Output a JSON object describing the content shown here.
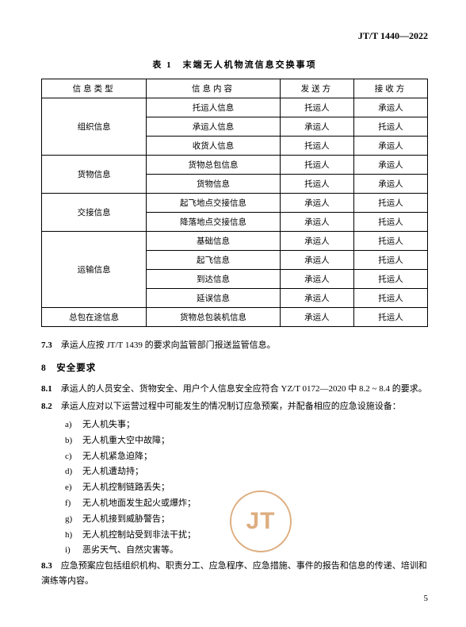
{
  "doc_code": "JT/T 1440—2022",
  "table_title": "表 1　末端无人机物流信息交换事项",
  "table_headers": [
    "信息类型",
    "信息内容",
    "发送方",
    "接收方"
  ],
  "table_groups": [
    {
      "type": "组织信息",
      "rows": [
        {
          "content": "托运人信息",
          "sender": "托运人",
          "receiver": "承运人"
        },
        {
          "content": "承运人信息",
          "sender": "承运人",
          "receiver": "托运人"
        },
        {
          "content": "收货人信息",
          "sender": "托运人",
          "receiver": "承运人"
        }
      ]
    },
    {
      "type": "货物信息",
      "rows": [
        {
          "content": "货物总包信息",
          "sender": "托运人",
          "receiver": "承运人"
        },
        {
          "content": "货物信息",
          "sender": "托运人",
          "receiver": "承运人"
        }
      ]
    },
    {
      "type": "交接信息",
      "rows": [
        {
          "content": "起飞地点交接信息",
          "sender": "承运人",
          "receiver": "托运人"
        },
        {
          "content": "降落地点交接信息",
          "sender": "承运人",
          "receiver": "托运人"
        }
      ]
    },
    {
      "type": "运输信息",
      "rows": [
        {
          "content": "基础信息",
          "sender": "承运人",
          "receiver": "托运人"
        },
        {
          "content": "起飞信息",
          "sender": "承运人",
          "receiver": "托运人"
        },
        {
          "content": "到达信息",
          "sender": "承运人",
          "receiver": "托运人"
        },
        {
          "content": "延误信息",
          "sender": "承运人",
          "receiver": "托运人"
        }
      ]
    },
    {
      "type": "总包在途信息",
      "rows": [
        {
          "content": "货物总包装机信息",
          "sender": "承运人",
          "receiver": "托运人"
        }
      ]
    }
  ],
  "clause_7_3": {
    "num": "7.3",
    "text": "承运人应按 JT/T 1439 的要求向监管部门报送监管信息。"
  },
  "heading_8": "8　安全要求",
  "clause_8_1": {
    "num": "8.1",
    "text": "承运人的人员安全、货物安全、用户个人信息安全应符合 YZ/T 0172—2020 中 8.2 ~ 8.4 的要求。"
  },
  "clause_8_2": {
    "num": "8.2",
    "text": "承运人应对以下运营过程中可能发生的情况制订应急预案，并配备相应的应急设施设备："
  },
  "list_8_2": [
    {
      "m": "a)",
      "t": "无人机失事；"
    },
    {
      "m": "b)",
      "t": "无人机重大空中故障；"
    },
    {
      "m": "c)",
      "t": "无人机紧急迫降；"
    },
    {
      "m": "d)",
      "t": "无人机遭劫持；"
    },
    {
      "m": "e)",
      "t": "无人机控制链路丢失；"
    },
    {
      "m": "f)",
      "t": "无人机地面发生起火或爆炸；"
    },
    {
      "m": "g)",
      "t": "无人机接到威胁警告；"
    },
    {
      "m": "h)",
      "t": "无人机控制站受到非法干扰；"
    },
    {
      "m": "i)",
      "t": "恶劣天气、自然灾害等。"
    }
  ],
  "clause_8_3": {
    "num": "8.3",
    "text": "应急预案应包括组织机构、职责分工、应急程序、应急措施、事件的报告和信息的传递、培训和演练等内容。"
  },
  "stamp_text": "JT",
  "page_number": "5",
  "colors": {
    "text": "#000000",
    "border": "#000000",
    "stamp": "#d9a06b",
    "bg": "#ffffff"
  }
}
